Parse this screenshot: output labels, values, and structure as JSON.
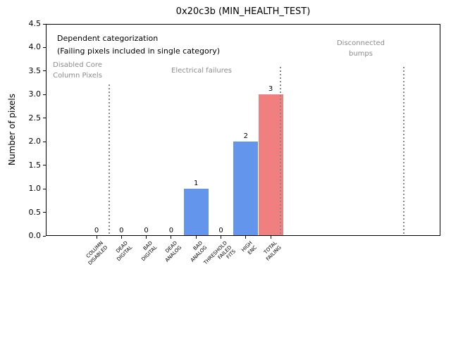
{
  "title": "0x20c3b (MIN_HEALTH_TEST)",
  "ylabel": "Number of pixels",
  "header_note": {
    "line1": "Dependent categorization",
    "line2": "(Failing pixels included in single category)"
  },
  "sections": {
    "disabled_core": "Disabled Core\nColumn Pixels",
    "electrical": "Electrical failures",
    "disconnected": "Disconnected\nbumps"
  },
  "chart_data": {
    "type": "bar",
    "title": "0x20c3b (MIN_HEALTH_TEST)",
    "xlabel": "",
    "ylabel": "Number of pixels",
    "categories": [
      "COLUMN\nDISABLED",
      "DEAD\nDIGITAL",
      "BAD\nDIGITAL",
      "DEAD\nANALOG",
      "BAD\nANALOG",
      "THRESHOLD\nFAILED\nFITS",
      "HIGH\nENC",
      "TOTAL\nFAILING"
    ],
    "values": [
      0,
      0,
      0,
      0,
      1,
      0,
      2,
      3
    ],
    "value_labels": [
      "0",
      "0",
      "0",
      "0",
      "1",
      "0",
      "2",
      "3"
    ],
    "bar_colors": [
      "#6495ED",
      "#6495ED",
      "#6495ED",
      "#6495ED",
      "#6495ED",
      "#6495ED",
      "#6495ED",
      "#F08080"
    ],
    "ylim": [
      0,
      4.5
    ],
    "ytick_step": 0.5,
    "grid": false,
    "legend": null,
    "annotations": [
      "Dependent categorization",
      "(Failing pixels included in single category)"
    ],
    "section_labels": [
      "Disabled Core\nColumn Pixels",
      "Electrical failures",
      "Disconnected\nbumps"
    ],
    "dividers": [
      {
        "x_slot": 0.5,
        "top_value": 3.21
      },
      {
        "x_slot": 7.4,
        "top_value": 3.59
      },
      {
        "x_slot": 12.36,
        "top_value": 3.59
      }
    ]
  },
  "colors": {
    "bar_blue": "#6495ED",
    "bar_red": "#F08080",
    "section_text": "#8C8C8C",
    "divider": "#888888",
    "axis": "#000000",
    "background": "#FFFFFF"
  }
}
